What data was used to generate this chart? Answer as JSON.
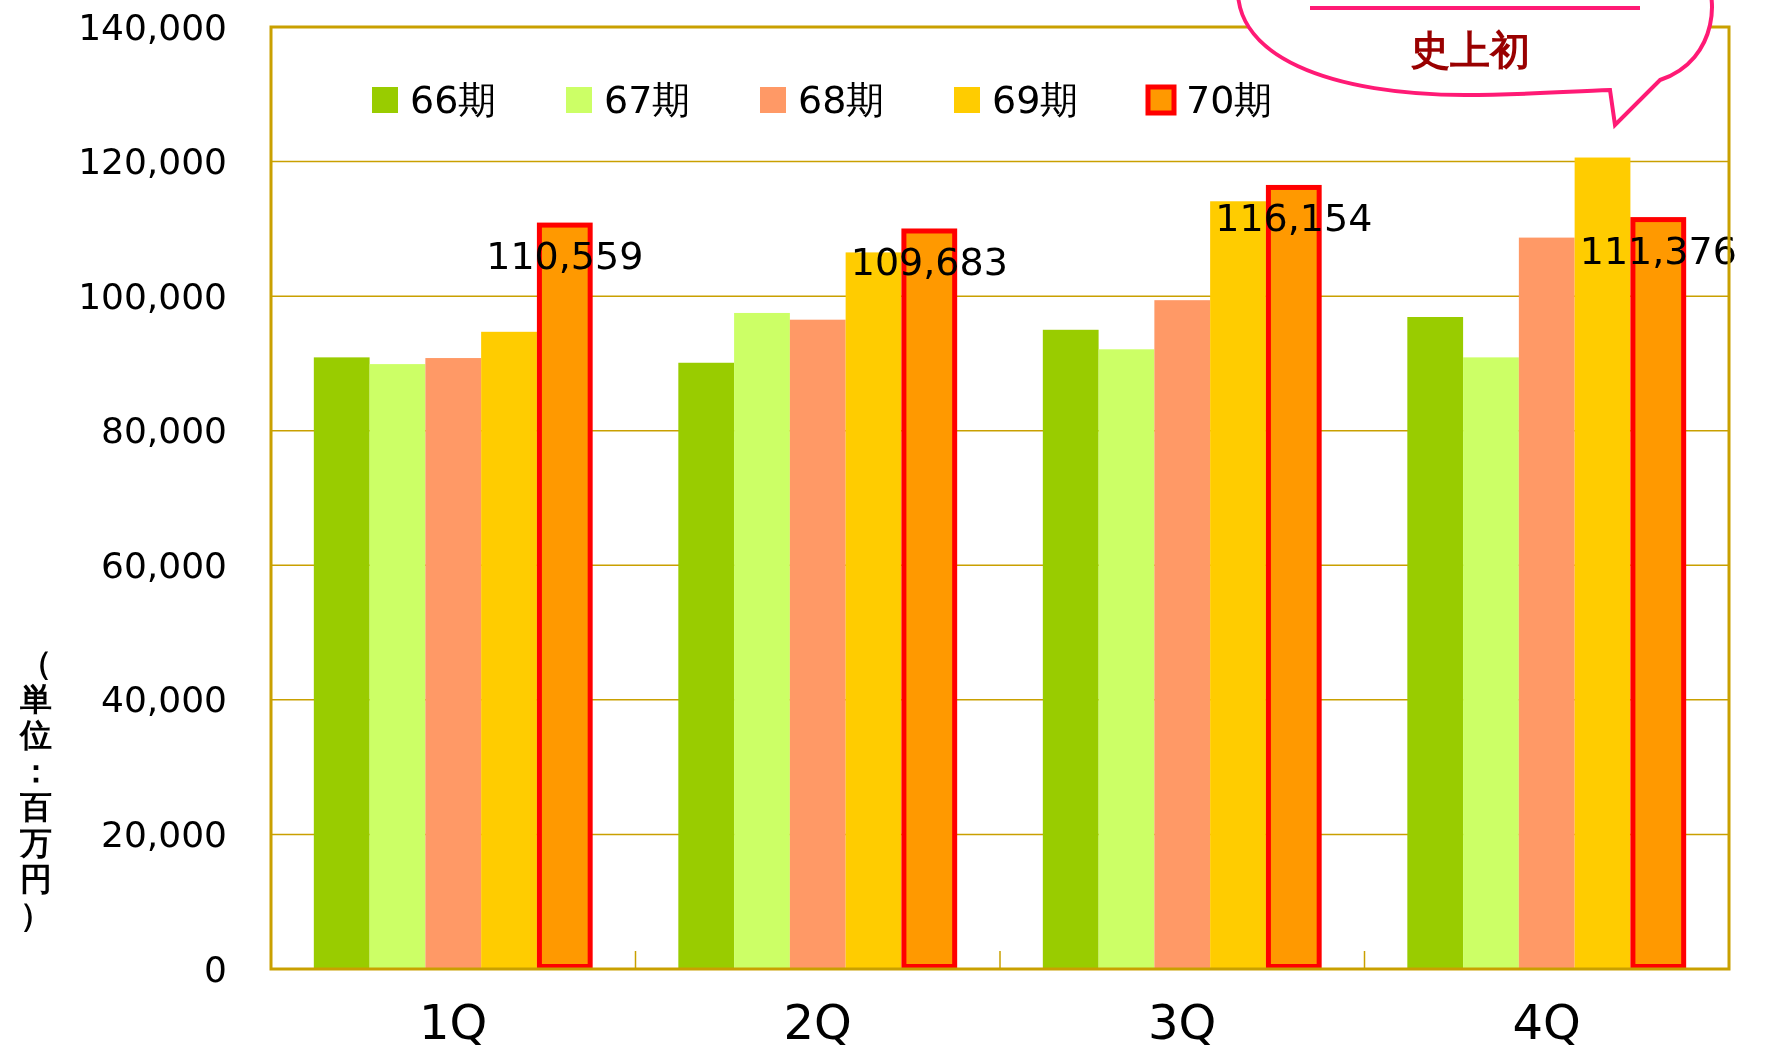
{
  "chart_data": {
    "type": "bar",
    "ylabel": "（単位：百万円）",
    "categories": [
      "1Q",
      "2Q",
      "3Q",
      "4Q"
    ],
    "series": [
      {
        "name": "66期",
        "color": "#99cc00",
        "values": [
          90900,
          90100,
          95000,
          96900
        ]
      },
      {
        "name": "67期",
        "color": "#ccff66",
        "values": [
          89900,
          97500,
          92100,
          90900
        ]
      },
      {
        "name": "68期",
        "color": "#ff9966",
        "values": [
          90800,
          96500,
          99400,
          108700
        ]
      },
      {
        "name": "69期",
        "color": "#ffcc00",
        "values": [
          94700,
          106500,
          114100,
          120600
        ]
      },
      {
        "name": "70期",
        "color": "#ff9900",
        "values": [
          110559,
          109683,
          116154,
          111376
        ],
        "value_labels": [
          "110,559",
          "109,683",
          "116,154",
          "111,376"
        ]
      }
    ],
    "ylim": [
      0,
      140000
    ],
    "yticks": [
      {
        "value": 0,
        "label": "0"
      },
      {
        "value": 20000,
        "label": "20,000"
      },
      {
        "value": 40000,
        "label": "40,000"
      },
      {
        "value": 60000,
        "label": "60,000"
      },
      {
        "value": 80000,
        "label": "80,000"
      },
      {
        "value": 100000,
        "label": "100,000"
      },
      {
        "value": 120000,
        "label": "120,000"
      },
      {
        "value": 140000,
        "label": "140,000"
      }
    ],
    "grid": "y",
    "legend": "top",
    "annotations": [
      "史上初"
    ]
  }
}
